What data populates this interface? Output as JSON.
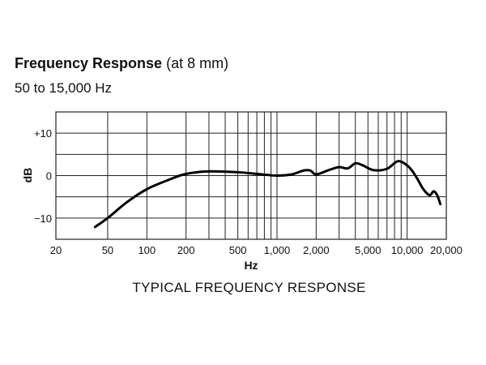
{
  "header": {
    "title_bold": "Frequency Response",
    "title_note": "(at 8 mm)",
    "subtitle": "50 to 15,000 Hz"
  },
  "chart_data": {
    "type": "line",
    "title": "Frequency Response (at 8 mm)",
    "subtitle": "50 to 15,000 Hz",
    "caption": "TYPICAL FREQUENCY RESPONSE",
    "xlabel": "Hz",
    "ylabel": "dB",
    "xscale": "log",
    "xlim": [
      20,
      20000
    ],
    "ylim": [
      -15,
      15
    ],
    "xticks": [
      20,
      50,
      100,
      200,
      500,
      1000,
      2000,
      5000,
      10000,
      20000
    ],
    "xtick_labels": [
      "20",
      "50",
      "100",
      "200",
      "500",
      "1,000",
      "2,000",
      "5,000",
      "10,000",
      "20,000"
    ],
    "yticks": [
      10,
      0,
      -10
    ],
    "ytick_labels": [
      "+10",
      "0",
      "−10"
    ],
    "grid": true,
    "series": [
      {
        "name": "Frequency response",
        "x": [
          40,
          50,
          70,
          100,
          150,
          200,
          300,
          500,
          700,
          1000,
          1300,
          1600,
          1800,
          2000,
          2500,
          3000,
          3500,
          4000,
          4500,
          5500,
          7000,
          8500,
          10000,
          11000,
          12000,
          13000,
          14000,
          15000,
          16000,
          17000,
          18000
        ],
        "y": [
          -12.1,
          -10,
          -6.3,
          -3.2,
          -0.9,
          0.4,
          1,
          0.8,
          0.4,
          0,
          0.3,
          1.2,
          1.2,
          0.3,
          1.3,
          2.0,
          1.7,
          2.9,
          2.5,
          1.3,
          1.6,
          3.4,
          2.4,
          1.0,
          -0.8,
          -2.7,
          -4.0,
          -4.6,
          -3.7,
          -4.6,
          -6.7
        ]
      }
    ]
  }
}
